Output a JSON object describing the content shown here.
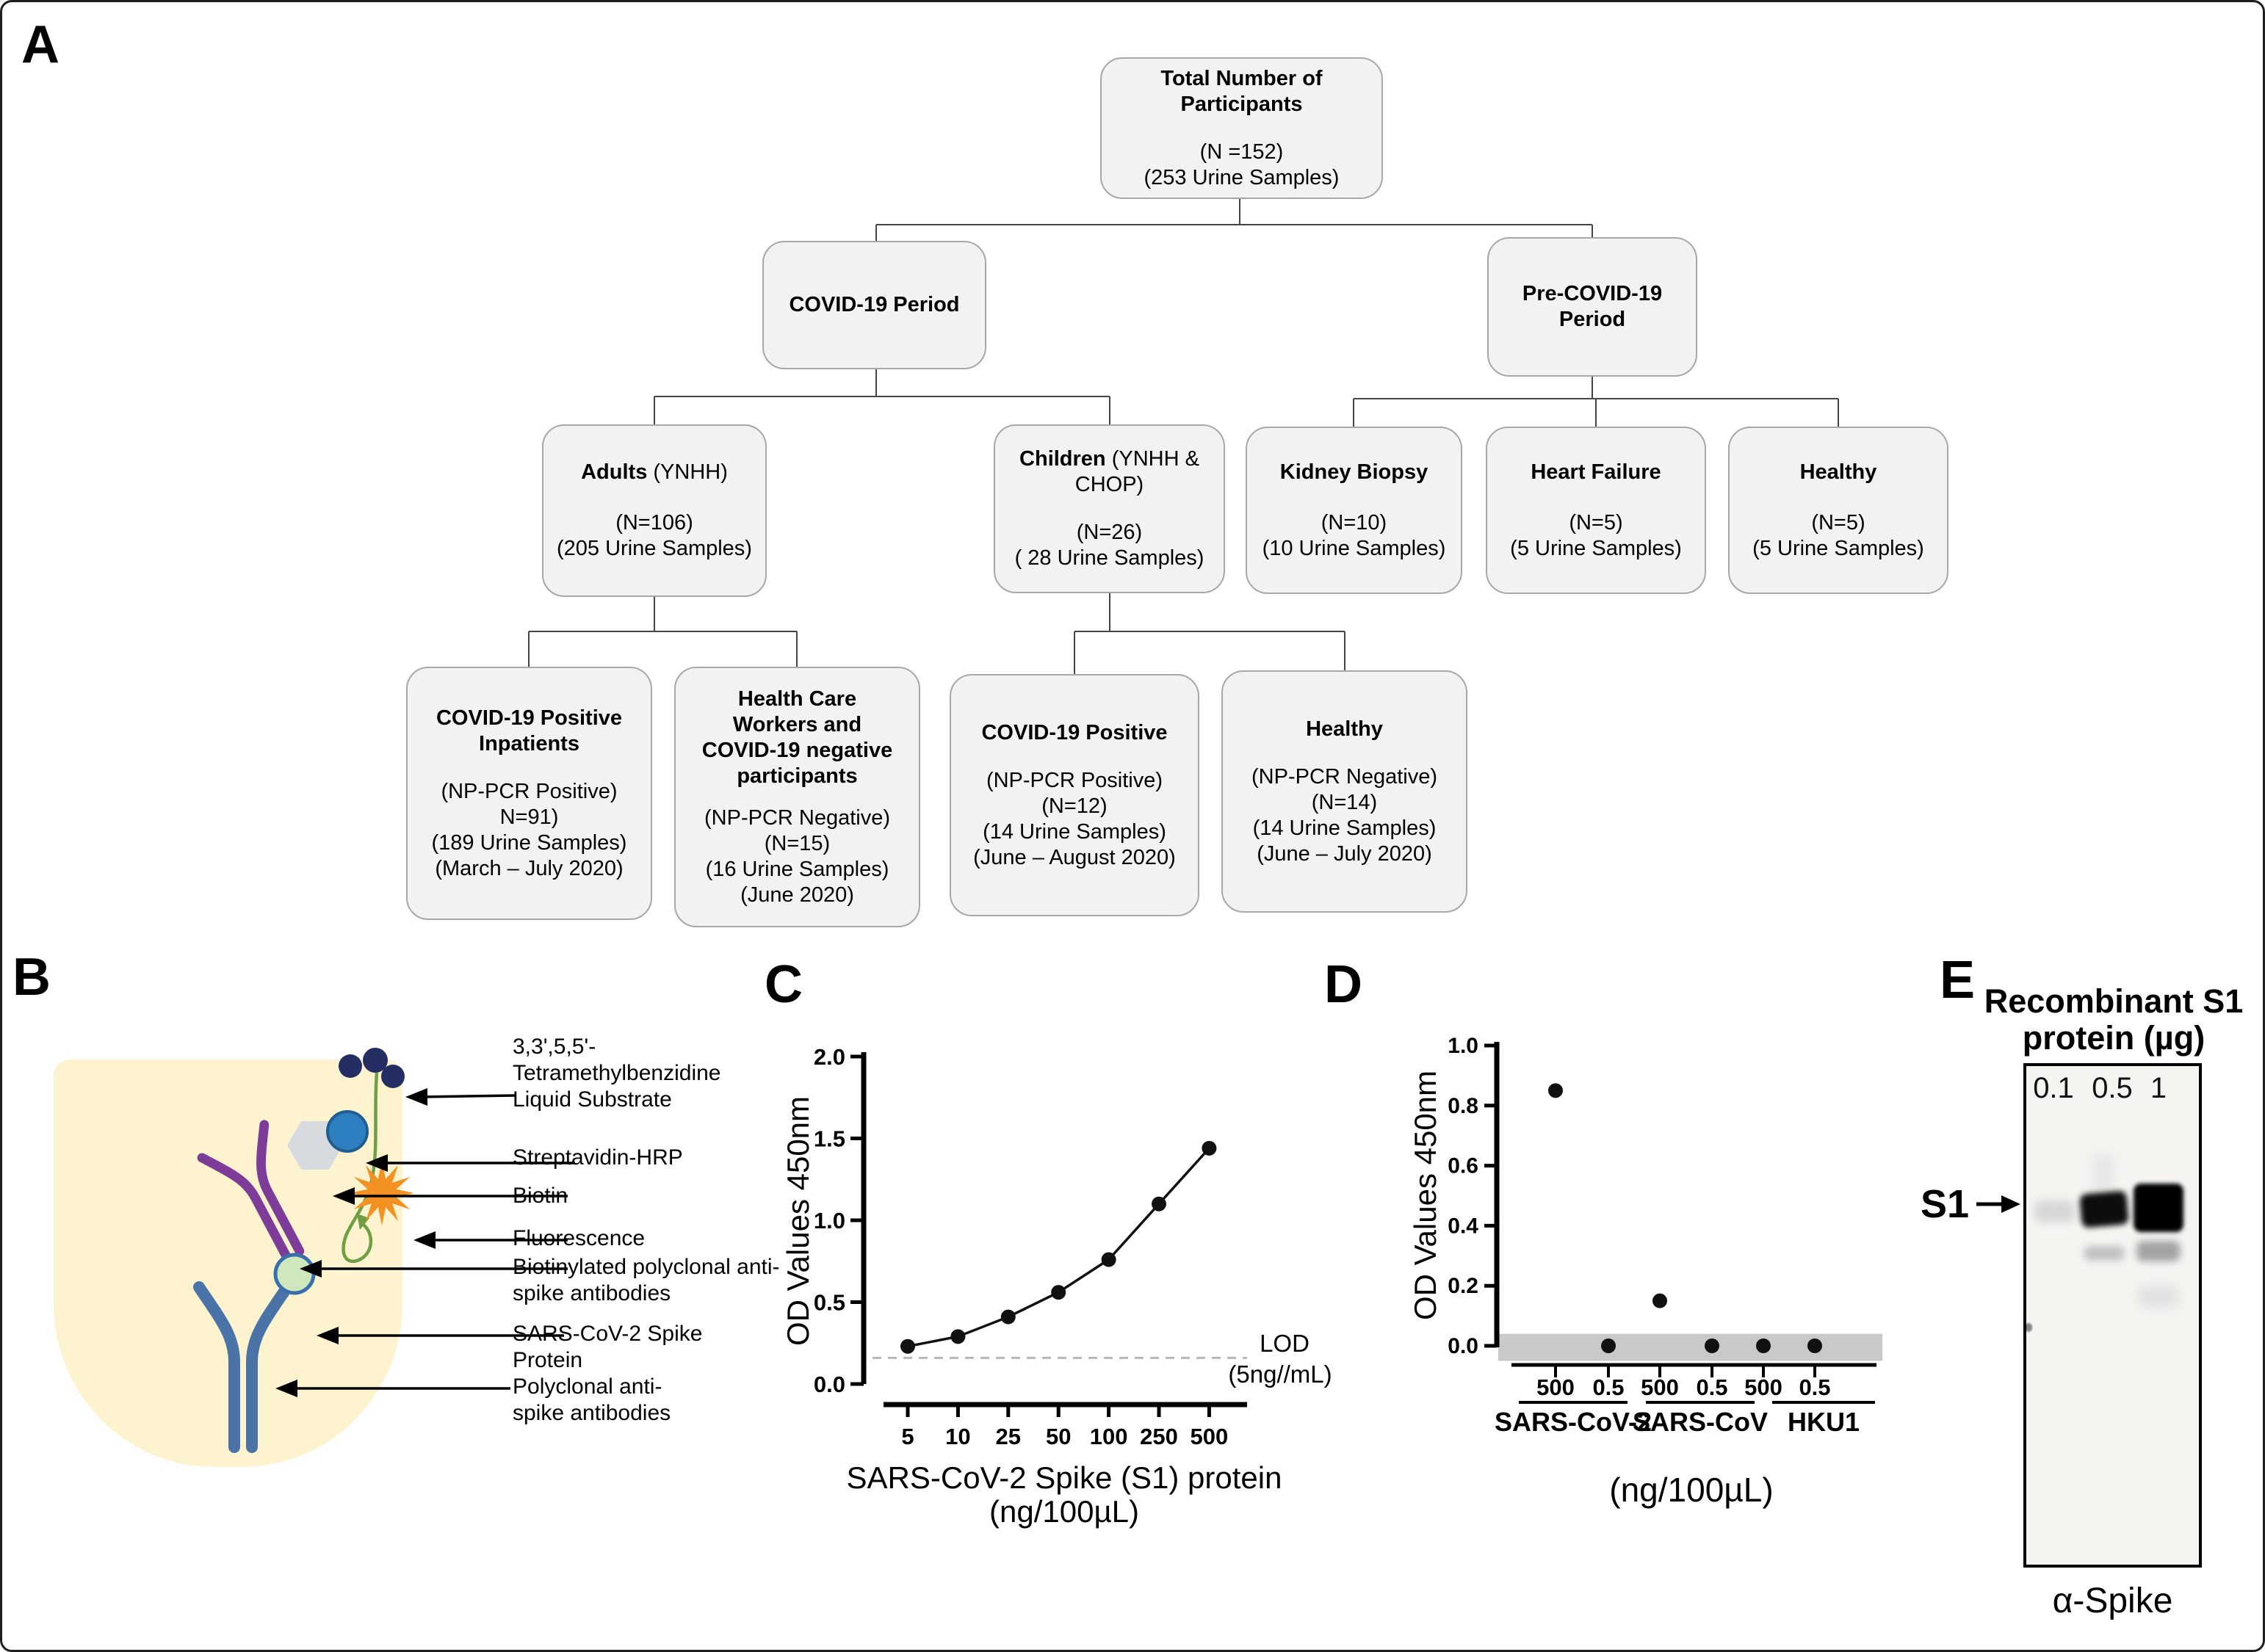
{
  "panel_labels": {
    "a": "A",
    "b": "B",
    "c": "C",
    "d": "D",
    "e": "E"
  },
  "flowchart": {
    "total": {
      "title": "Total Number of Participants",
      "n": "(N =152)",
      "samples": "(253 Urine Samples)"
    },
    "covid_period": {
      "title": "COVID-19 Period"
    },
    "pre_covid_period": {
      "title": "Pre-COVID-19 Period"
    },
    "adults": {
      "title": "Adults",
      "suffix": " (YNHH)",
      "n": "(N=106)",
      "samples": "(205 Urine Samples)"
    },
    "children": {
      "title": "Children",
      "suffix": " (YNHH & CHOP)",
      "n": "(N=26)",
      "samples": "( 28 Urine Samples)"
    },
    "kidney_biopsy": {
      "title": "Kidney Biopsy",
      "n": "(N=10)",
      "samples": "(10 Urine Samples)"
    },
    "heart_failure": {
      "title": "Heart Failure",
      "n": "(N=5)",
      "samples": "(5 Urine Samples)"
    },
    "healthy_pre": {
      "title": "Healthy",
      "n": "(N=5)",
      "samples": "(5 Urine Samples)"
    },
    "inpatients": {
      "title": "COVID-19 Positive Inpatients",
      "lines": [
        "(NP-PCR Positive)",
        "N=91)",
        "(189 Urine Samples)",
        "(March – July 2020)"
      ]
    },
    "hcw": {
      "title": "Health Care Workers and COVID-19 negative participants",
      "lines": [
        "(NP-PCR Negative)",
        "(N=15)",
        "(16 Urine Samples)",
        "(June 2020)"
      ]
    },
    "children_positive": {
      "title": "COVID-19 Positive",
      "lines": [
        "(NP-PCR Positive)",
        "(N=12)",
        "(14 Urine Samples)",
        "(June – August 2020)"
      ]
    },
    "children_healthy": {
      "title": "Healthy",
      "lines": [
        "(NP-PCR Negative)",
        "(N=14)",
        "(14 Urine Samples)",
        "(June – July 2020)"
      ]
    }
  },
  "elisa": {
    "labels": [
      {
        "lines": [
          "3,3',5,5'-",
          "Tetramethylbenzidine",
          "Liquid Substrate"
        ]
      },
      {
        "lines": [
          "Streptavidin-HRP"
        ]
      },
      {
        "lines": [
          "Biotin"
        ]
      },
      {
        "lines": [
          "Fluorescence"
        ]
      },
      {
        "lines": [
          "Biotinylated polyclonal anti-",
          "spike antibodies"
        ]
      },
      {
        "lines": [
          "SARS-CoV-2 Spike",
          "Protein"
        ]
      },
      {
        "lines": [
          "Polyclonal anti-",
          "spike antibodies"
        ]
      }
    ],
    "colors": {
      "well": "#fdf3cf",
      "capture_antibody": "#4a74a8",
      "spike_protein": "#cfe7bc",
      "detection_antibody": "#7d3c98",
      "biotin": "#d7dade",
      "streptavidin": "#2e7fc0",
      "substrate": "#252e62",
      "fluorescence": "#f39122",
      "linker": "#6f9e44"
    }
  },
  "chart_data": [
    {
      "id": "C",
      "type": "line",
      "x_categories": [
        "5",
        "10",
        "25",
        "50",
        "100",
        "250",
        "500"
      ],
      "values": [
        0.23,
        0.29,
        0.41,
        0.56,
        0.76,
        1.1,
        1.44
      ],
      "ylabel": "OD Values 450nm",
      "xlabel_lines": [
        "SARS-CoV-2 Spike (S1) protein",
        "(ng/100µL)"
      ],
      "ylim": [
        0,
        2.0
      ],
      "yticks": [
        "0.0",
        "0.5",
        "1.0",
        "1.5",
        "2.0"
      ],
      "grid": false,
      "legend": "none",
      "lod": {
        "value": 0.16,
        "label_lines": [
          "LOD",
          "(5ng//mL)"
        ]
      }
    },
    {
      "id": "D",
      "type": "scatter",
      "ylabel": "OD Values 450nm",
      "xlabel": "(ng/100µL)",
      "ylim": [
        0,
        1.0
      ],
      "yticks": [
        "0.0",
        "0.2",
        "0.4",
        "0.6",
        "0.8",
        "1.0"
      ],
      "grid": false,
      "legend": "none",
      "groups": [
        {
          "name": "SARS-CoV-2",
          "doses": [
            "500",
            "0.5"
          ],
          "values": [
            0.85,
            0
          ]
        },
        {
          "name": "SARS-CoV",
          "doses": [
            "500",
            "0.5"
          ],
          "values": [
            0.15,
            0
          ]
        },
        {
          "name": "HKU1",
          "doses": [
            "500",
            "0.5"
          ],
          "values": [
            0,
            0
          ]
        }
      ],
      "background_band": {
        "range": [
          -0.05,
          0.04
        ],
        "color": "#c9c9c9"
      }
    }
  ],
  "blot": {
    "title_lines": [
      "Recombinant S1",
      "protein (µg)"
    ],
    "lanes": [
      "0.1",
      "0.5",
      "1"
    ],
    "band_label": "S1",
    "stain_label": "α-Spike",
    "band_intensities": [
      0.15,
      0.85,
      1.0
    ]
  }
}
